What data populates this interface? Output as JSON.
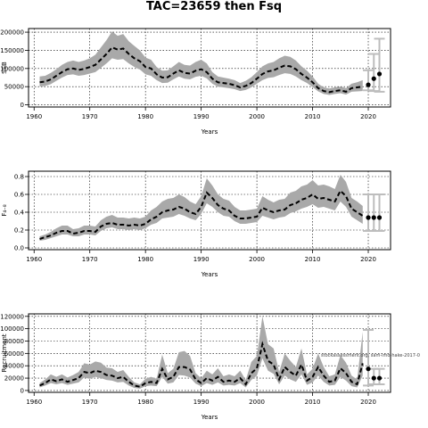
{
  "title": "TAC=23659 then Fsq",
  "watermark": "stockassessment.org, sam-lmo-hake-2017-0",
  "chart_data": [
    {
      "type": "line",
      "ylabel": "SSB",
      "xlabel": "Years",
      "xlim": [
        1959,
        2024
      ],
      "ylim": [
        -6000,
        210000
      ],
      "xticks": [
        1960,
        1970,
        1980,
        1990,
        2000,
        2010,
        2020
      ],
      "yticks": [
        0,
        50000,
        100000,
        150000,
        200000
      ],
      "ytick_labels": [
        "0",
        "50000",
        "100000",
        "150000",
        "200000"
      ],
      "grid": true,
      "years": [
        1961,
        1962,
        1963,
        1964,
        1965,
        1966,
        1967,
        1968,
        1969,
        1970,
        1971,
        1972,
        1973,
        1974,
        1975,
        1976,
        1977,
        1978,
        1979,
        1980,
        1981,
        1982,
        1983,
        1984,
        1985,
        1986,
        1987,
        1988,
        1989,
        1990,
        1991,
        1992,
        1993,
        1994,
        1995,
        1996,
        1997,
        1998,
        1999,
        2000,
        2001,
        2002,
        2003,
        2004,
        2005,
        2006,
        2007,
        2008,
        2009,
        2010,
        2011,
        2012,
        2013,
        2014,
        2015,
        2016,
        2017,
        2018,
        2019
      ],
      "estimate": [
        62000,
        64000,
        70000,
        80000,
        90000,
        98000,
        100000,
        96000,
        99000,
        104000,
        110000,
        125000,
        140000,
        158000,
        152000,
        155000,
        140000,
        128000,
        120000,
        104000,
        100000,
        84000,
        75000,
        76000,
        86000,
        95000,
        88000,
        86000,
        94000,
        98000,
        90000,
        72000,
        62000,
        60000,
        58000,
        54000,
        48000,
        52000,
        60000,
        72000,
        85000,
        92000,
        95000,
        102000,
        108000,
        106000,
        98000,
        85000,
        75000,
        62000,
        46000,
        38000,
        35000,
        38000,
        40000,
        36000,
        46000,
        48000,
        50000
      ],
      "lower": [
        50000,
        52000,
        57000,
        66000,
        75000,
        82000,
        84000,
        80000,
        82000,
        86000,
        90000,
        102000,
        114000,
        128000,
        124000,
        126000,
        114000,
        104000,
        97000,
        84000,
        80000,
        68000,
        60000,
        61000,
        70000,
        78000,
        72000,
        70000,
        77000,
        80000,
        73000,
        58000,
        50000,
        48000,
        46000,
        43000,
        38000,
        41000,
        48000,
        58000,
        68000,
        74000,
        76000,
        82000,
        87000,
        85000,
        78000,
        68000,
        60000,
        49000,
        37000,
        30000,
        27000,
        30000,
        32000,
        28000,
        36000,
        37000,
        38000
      ],
      "upper": [
        78000,
        80000,
        88000,
        98000,
        110000,
        118000,
        122000,
        118000,
        122000,
        128000,
        138000,
        158000,
        178000,
        202000,
        190000,
        195000,
        175000,
        162000,
        150000,
        130000,
        124000,
        104000,
        94000,
        95000,
        106000,
        118000,
        110000,
        108000,
        118000,
        124000,
        114000,
        90000,
        78000,
        75000,
        72000,
        68000,
        60000,
        66000,
        76000,
        90000,
        106000,
        114000,
        118000,
        128000,
        135000,
        132000,
        122000,
        106000,
        94000,
        78000,
        58000,
        48000,
        45000,
        48000,
        50000,
        46000,
        58000,
        62000,
        68000
      ],
      "forecast": {
        "years": [
          2020,
          2021,
          2022
        ],
        "values": [
          55000,
          72000,
          85000
        ],
        "lower": [
          40000,
          38000,
          36000
        ],
        "upper": [
          95000,
          140000,
          182000
        ]
      }
    },
    {
      "type": "line",
      "ylabel": "F₄₋₈",
      "xlabel": "Years",
      "xlim": [
        1959,
        2024
      ],
      "ylim": [
        -0.02,
        0.86
      ],
      "xticks": [
        1960,
        1970,
        1980,
        1990,
        2000,
        2010,
        2020
      ],
      "yticks": [
        0.0,
        0.2,
        0.4,
        0.6,
        0.8
      ],
      "ytick_labels": [
        "0.0",
        "0.2",
        "0.4",
        "0.6",
        "0.8"
      ],
      "grid": true,
      "years": [
        1961,
        1962,
        1963,
        1964,
        1965,
        1966,
        1967,
        1968,
        1969,
        1970,
        1971,
        1972,
        1973,
        1974,
        1975,
        1976,
        1977,
        1978,
        1979,
        1980,
        1981,
        1982,
        1983,
        1984,
        1985,
        1986,
        1987,
        1988,
        1989,
        1990,
        1991,
        1992,
        1993,
        1994,
        1995,
        1996,
        1997,
        1998,
        1999,
        2000,
        2001,
        2002,
        2003,
        2004,
        2005,
        2006,
        2007,
        2008,
        2009,
        2010,
        2011,
        2012,
        2013,
        2014,
        2015,
        2016,
        2017,
        2018,
        2019
      ],
      "estimate": [
        0.1,
        0.12,
        0.14,
        0.17,
        0.19,
        0.19,
        0.16,
        0.17,
        0.19,
        0.19,
        0.18,
        0.24,
        0.27,
        0.28,
        0.26,
        0.26,
        0.25,
        0.26,
        0.25,
        0.27,
        0.32,
        0.35,
        0.4,
        0.42,
        0.43,
        0.46,
        0.44,
        0.4,
        0.38,
        0.46,
        0.62,
        0.56,
        0.48,
        0.44,
        0.42,
        0.36,
        0.33,
        0.33,
        0.34,
        0.35,
        0.45,
        0.42,
        0.4,
        0.42,
        0.43,
        0.48,
        0.5,
        0.54,
        0.56,
        0.6,
        0.55,
        0.56,
        0.54,
        0.52,
        0.64,
        0.58,
        0.44,
        0.4,
        0.36
      ],
      "lower": [
        0.08,
        0.09,
        0.11,
        0.13,
        0.15,
        0.15,
        0.13,
        0.13,
        0.15,
        0.15,
        0.14,
        0.19,
        0.22,
        0.23,
        0.21,
        0.21,
        0.2,
        0.21,
        0.2,
        0.22,
        0.26,
        0.28,
        0.33,
        0.34,
        0.35,
        0.38,
        0.36,
        0.33,
        0.31,
        0.38,
        0.5,
        0.46,
        0.4,
        0.36,
        0.35,
        0.3,
        0.27,
        0.27,
        0.28,
        0.29,
        0.36,
        0.34,
        0.32,
        0.34,
        0.35,
        0.39,
        0.41,
        0.44,
        0.46,
        0.49,
        0.45,
        0.46,
        0.44,
        0.42,
        0.52,
        0.46,
        0.35,
        0.31,
        0.27
      ],
      "upper": [
        0.13,
        0.15,
        0.18,
        0.22,
        0.25,
        0.25,
        0.21,
        0.22,
        0.25,
        0.25,
        0.24,
        0.31,
        0.35,
        0.37,
        0.34,
        0.34,
        0.33,
        0.34,
        0.33,
        0.35,
        0.42,
        0.46,
        0.52,
        0.55,
        0.56,
        0.6,
        0.57,
        0.52,
        0.49,
        0.58,
        0.78,
        0.7,
        0.6,
        0.55,
        0.53,
        0.46,
        0.42,
        0.42,
        0.43,
        0.44,
        0.58,
        0.54,
        0.51,
        0.54,
        0.55,
        0.62,
        0.64,
        0.69,
        0.71,
        0.76,
        0.7,
        0.71,
        0.69,
        0.66,
        0.82,
        0.74,
        0.56,
        0.52,
        0.47
      ],
      "forecast": {
        "years": [
          2020,
          2021,
          2022
        ],
        "values": [
          0.34,
          0.34,
          0.34
        ],
        "lower": [
          0.19,
          0.19,
          0.19
        ],
        "upper": [
          0.6,
          0.6,
          0.6
        ]
      }
    },
    {
      "type": "line",
      "ylabel": "Recruitment",
      "xlabel": "Years",
      "xlim": [
        1959,
        2024
      ],
      "ylim": [
        -3000,
        124000
      ],
      "xticks": [
        1960,
        1970,
        1980,
        1990,
        2000,
        2010,
        2020
      ],
      "yticks": [
        0,
        20000,
        40000,
        60000,
        80000,
        100000,
        120000
      ],
      "ytick_labels": [
        "0",
        "20000",
        "40000",
        "60000",
        "80000",
        "100000",
        "120000"
      ],
      "grid": true,
      "years": [
        1961,
        1962,
        1963,
        1964,
        1965,
        1966,
        1967,
        1968,
        1969,
        1970,
        1971,
        1972,
        1973,
        1974,
        1975,
        1976,
        1977,
        1978,
        1979,
        1980,
        1981,
        1982,
        1983,
        1984,
        1985,
        1986,
        1987,
        1988,
        1989,
        1990,
        1991,
        1992,
        1993,
        1994,
        1995,
        1996,
        1997,
        1998,
        1999,
        2000,
        2001,
        2002,
        2003,
        2004,
        2005,
        2006,
        2007,
        2008,
        2009,
        2010,
        2011,
        2012,
        2013,
        2014,
        2015,
        2016,
        2017,
        2018,
        2019
      ],
      "estimate": [
        8000,
        12000,
        18000,
        15000,
        18000,
        14000,
        17000,
        20000,
        30000,
        28000,
        32000,
        30000,
        25000,
        24000,
        20000,
        22000,
        14000,
        8000,
        6000,
        12000,
        14000,
        12000,
        35000,
        18000,
        22000,
        38000,
        38000,
        34000,
        18000,
        12000,
        20000,
        16000,
        22000,
        14000,
        16000,
        14000,
        20000,
        10000,
        28000,
        36000,
        75000,
        48000,
        42000,
        18000,
        38000,
        30000,
        24000,
        42000,
        16000,
        22000,
        38000,
        24000,
        14000,
        16000,
        36000,
        28000,
        14000,
        10000,
        44000
      ],
      "lower": [
        5000,
        8000,
        12000,
        10000,
        12000,
        9000,
        11000,
        13000,
        21000,
        19000,
        22000,
        20000,
        17000,
        16000,
        13000,
        14000,
        8000,
        4000,
        3000,
        7000,
        8000,
        7000,
        22000,
        11000,
        13000,
        25000,
        24000,
        21000,
        11000,
        7000,
        12000,
        9000,
        13000,
        8000,
        9000,
        8000,
        12000,
        5000,
        17000,
        24000,
        52000,
        32000,
        27000,
        10000,
        24000,
        18000,
        14000,
        26000,
        9000,
        13000,
        24000,
        14000,
        8000,
        9000,
        22000,
        16000,
        7000,
        5000,
        24000
      ],
      "upper": [
        12000,
        18000,
        26000,
        22000,
        26000,
        21000,
        25000,
        30000,
        44000,
        42000,
        47000,
        45000,
        37000,
        36000,
        30000,
        33000,
        22000,
        13000,
        10000,
        19000,
        22000,
        19000,
        58000,
        28000,
        35000,
        62000,
        64000,
        56000,
        28000,
        20000,
        32000,
        26000,
        36000,
        23000,
        26000,
        23000,
        32000,
        17000,
        46000,
        56000,
        120000,
        75000,
        68000,
        30000,
        60000,
        48000,
        38000,
        68000,
        26000,
        35000,
        60000,
        38000,
        23000,
        26000,
        57000,
        45000,
        24000,
        18000,
        95000
      ],
      "forecast": {
        "years": [
          2020,
          2021,
          2022
        ],
        "values": [
          35000,
          20000,
          20000
        ],
        "lower": [
          8000,
          10000,
          10000
        ],
        "upper": [
          98000,
          35000,
          35000
        ]
      }
    }
  ]
}
